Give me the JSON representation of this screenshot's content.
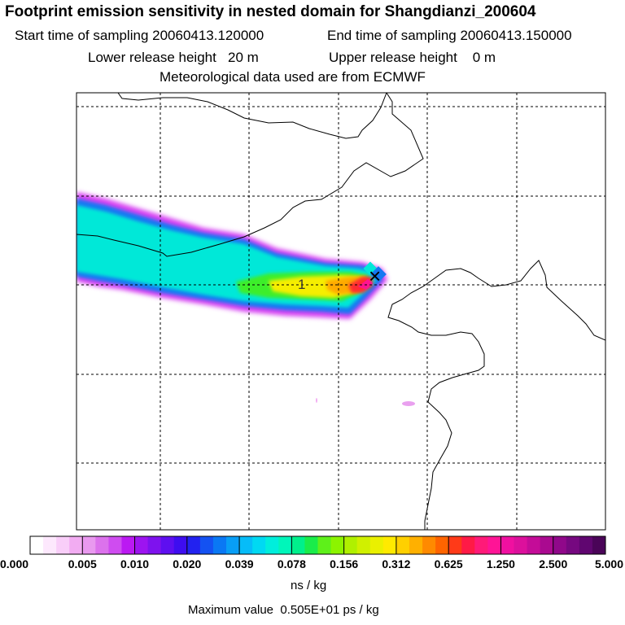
{
  "header": {
    "title": "Footprint emission sensitivity in nested domain for Shangdianzi_200604",
    "start_label": "Start time of sampling 20060413.120000",
    "end_label": "End time of sampling 20060413.150000",
    "lower_label": "Lower release height   20 m",
    "upper_label": "Upper release height    0 m",
    "met_label": "Meteorological data used are from ECMWF"
  },
  "map": {
    "release_marker": "1",
    "receptor_marker": "×",
    "max_color": "#e8002a",
    "coast_color": "#000000"
  },
  "colorbar": {
    "tick_labels": [
      "0.000",
      "0.005",
      "0.010",
      "0.020",
      "0.039",
      "0.078",
      "0.156",
      "0.312",
      "0.625",
      "1.250",
      "2.500",
      "5.000"
    ],
    "colors": [
      "#ffffff",
      "#fde8fd",
      "#f9cef9",
      "#f2acf2",
      "#e999ef",
      "#dc72ec",
      "#cf4cf0",
      "#bb19f2",
      "#9d14f0",
      "#7e12ee",
      "#5e0ff0",
      "#3e0df0",
      "#2222f0",
      "#1452f2",
      "#0a78f4",
      "#089ef6",
      "#06bcf8",
      "#00d9f2",
      "#00eedc",
      "#00f6ba",
      "#00f08c",
      "#1aec4a",
      "#5ef01a",
      "#8cf400",
      "#b0f000",
      "#d0f000",
      "#eaf000",
      "#ffea00",
      "#ffd000",
      "#ffb000",
      "#ff8a00",
      "#ff6400",
      "#ff3a18",
      "#ff1a46",
      "#ff1a78",
      "#ff1496",
      "#f010a0",
      "#dc109c",
      "#c40c98",
      "#aa0a90",
      "#90088a",
      "#760880",
      "#600670",
      "#4a0458"
    ],
    "units": "ns / kg",
    "max_label": "Maximum value  0.505E+01 ps / kg"
  }
}
